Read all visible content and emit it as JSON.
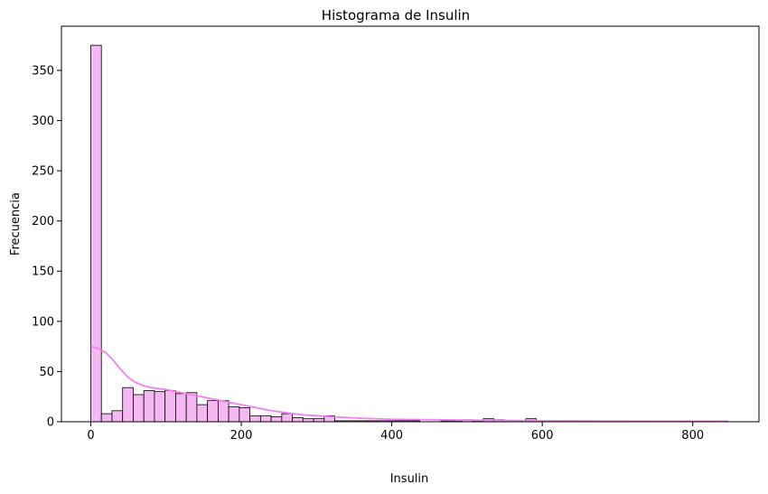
{
  "chart_data": {
    "type": "bar",
    "title": "Histograma de Insulin",
    "xlabel": "Insulin",
    "ylabel": "Frecuencia",
    "xlim": [
      -39,
      888
    ],
    "ylim": [
      0,
      394
    ],
    "xticks": [
      0,
      200,
      400,
      600,
      800
    ],
    "yticks": [
      0,
      50,
      100,
      150,
      200,
      250,
      300,
      350
    ],
    "bin_width": 14.1,
    "bin_start": 0,
    "counts": [
      375,
      8,
      11,
      34,
      27,
      31,
      30,
      31,
      28,
      29,
      17,
      21,
      21,
      15,
      14,
      6,
      6,
      5,
      8,
      4,
      3,
      3,
      6,
      1,
      1,
      1,
      1,
      1,
      1,
      1,
      1,
      0,
      0,
      1,
      1,
      2,
      1,
      3,
      2,
      1,
      0,
      3,
      0,
      0,
      0,
      0,
      0,
      0,
      0,
      0,
      0,
      0,
      0,
      0,
      0,
      0,
      0,
      0,
      0,
      1
    ],
    "bar_color": "#f5b8f2",
    "bar_edge_color": "#000000",
    "kde": {
      "color": "#ee82ee",
      "x": [
        0,
        10,
        20,
        30,
        40,
        50,
        60,
        70,
        80,
        90,
        100,
        120,
        140,
        160,
        180,
        200,
        220,
        240,
        260,
        280,
        300,
        330,
        360,
        400,
        450,
        500,
        550,
        600,
        700,
        800,
        846
      ],
      "y": [
        75,
        73,
        69,
        61,
        52,
        44,
        39,
        36,
        34,
        33,
        32,
        29,
        26,
        23,
        20,
        17,
        14,
        11,
        9,
        7,
        6,
        4.5,
        3.5,
        2.5,
        2,
        1.7,
        1.3,
        1,
        0.7,
        0.5,
        0.5
      ]
    }
  }
}
